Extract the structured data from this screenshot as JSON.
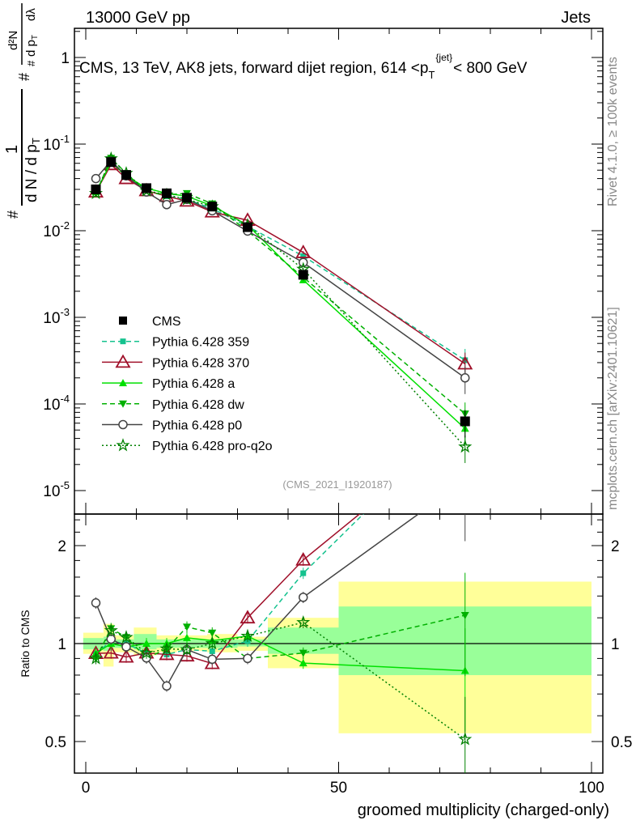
{
  "header": {
    "left": "13000 GeV pp",
    "right": "Jets",
    "title_main": "CMS, 13 TeV, AK8 jets, forward dijet region, 614 <p",
    "title_sub": "T",
    "title_sup": "{jet}",
    "title_end": "< 800 GeV",
    "side_top": "Rivet 4.1.0, ≥ 100k events",
    "side_bottom": "mcplots.cern.ch [arXiv:2401.10621]",
    "analysis": "(CMS_2021_I1920187)"
  },
  "ylabel_parts": [
    "#",
    "1",
    "d N / d p",
    "T",
    "#",
    "d²N",
    "#",
    "d p",
    "T",
    "dλ"
  ],
  "chart_data": [
    {
      "type": "line",
      "panel": "main",
      "yscale": "log",
      "xlim": [
        -2.2,
        102.2
      ],
      "ylim": [
        1e-05,
        1.8
      ],
      "ytick_labels": [
        "1",
        "10",
        "10",
        "10",
        "10",
        "10"
      ],
      "ytick_exps": [
        "",
        "-1",
        "-2",
        "-3",
        "-4",
        "-5"
      ],
      "legend_placement": "center-left",
      "x": [
        2,
        5,
        8,
        12,
        16,
        20,
        25,
        32,
        43,
        75
      ],
      "series": [
        {
          "name": "CMS",
          "color": "#000000",
          "marker": "square",
          "dash": "none",
          "values": [
            0.03,
            0.062,
            0.044,
            0.031,
            0.027,
            0.024,
            0.019,
            0.011,
            0.0031,
            6.3e-05
          ]
        },
        {
          "name": "Pythia 6.428 359",
          "color": "#14c28e",
          "marker": "smallsquare",
          "dash": "6,4",
          "values": [
            0.028,
            0.063,
            0.044,
            0.029,
            0.025,
            0.023,
            0.018,
            0.0112,
            0.0051,
            0.00032
          ]
        },
        {
          "name": "Pythia 6.428 370",
          "color": "#a0102a",
          "marker": "triangle-open",
          "dash": "none",
          "values": [
            0.028,
            0.058,
            0.04,
            0.029,
            0.025,
            0.022,
            0.0165,
            0.0132,
            0.0056,
            0.00029
          ]
        },
        {
          "name": "Pythia 6.428 a",
          "color": "#00e000",
          "marker": "triangle",
          "dash": "none",
          "values": [
            0.028,
            0.062,
            0.043,
            0.031,
            0.027,
            0.025,
            0.0194,
            0.0116,
            0.0027,
            5.2e-05
          ]
        },
        {
          "name": "Pythia 6.428 dw",
          "color": "#00b000",
          "marker": "triangle-down",
          "dash": "6,4",
          "values": [
            0.027,
            0.069,
            0.046,
            0.028,
            0.026,
            0.027,
            0.0205,
            0.0099,
            0.0029,
            7.7e-05
          ]
        },
        {
          "name": "Pythia 6.428 p0",
          "color": "#444444",
          "marker": "circle-open",
          "dash": "none",
          "values": [
            0.04,
            0.064,
            0.043,
            0.028,
            0.02,
            0.023,
            0.017,
            0.0099,
            0.0043,
            0.0002
          ]
        },
        {
          "name": "Pythia 6.428 pro-q2o",
          "color": "#008000",
          "marker": "star",
          "dash": "2,3",
          "values": [
            0.027,
            0.068,
            0.046,
            0.029,
            0.026,
            0.023,
            0.019,
            0.0116,
            0.0036,
            3.2e-05
          ]
        }
      ]
    },
    {
      "type": "line",
      "panel": "ratio",
      "yscale": "log",
      "ylabel": "Ratio to CMS",
      "xlabel": "groomed multiplicity (charged-only)",
      "ylim": [
        0.4,
        2.5
      ],
      "ytick_labels": [
        "2",
        "1",
        "0.5"
      ],
      "ytick_values": [
        2,
        1,
        0.5
      ],
      "xtick_labels": [
        "0",
        "50",
        "100"
      ],
      "xtick_values": [
        0,
        50,
        100
      ],
      "bins": [
        [
          -0.5,
          3.5
        ],
        [
          3.5,
          5.5
        ],
        [
          5.5,
          9.5
        ],
        [
          9.5,
          14
        ],
        [
          14,
          18
        ],
        [
          18,
          24
        ],
        [
          24,
          30
        ],
        [
          30,
          36
        ],
        [
          36,
          50
        ],
        [
          50,
          100
        ]
      ],
      "band_outer": [
        [
          0.93,
          1.08
        ],
        [
          0.85,
          1.15
        ],
        [
          0.94,
          1.06
        ],
        [
          0.92,
          1.12
        ],
        [
          0.94,
          1.06
        ],
        [
          0.95,
          1.06
        ],
        [
          0.94,
          1.07
        ],
        [
          0.95,
          1.05
        ],
        [
          0.84,
          1.2
        ],
        [
          0.53,
          1.55
        ]
      ],
      "band_inner": [
        [
          0.96,
          1.04
        ],
        [
          0.95,
          1.05
        ],
        [
          0.97,
          1.03
        ],
        [
          0.96,
          1.07
        ],
        [
          0.97,
          1.03
        ],
        [
          0.97,
          1.03
        ],
        [
          0.97,
          1.03
        ],
        [
          0.98,
          1.03
        ],
        [
          0.93,
          1.12
        ],
        [
          0.8,
          1.3
        ]
      ]
    }
  ]
}
